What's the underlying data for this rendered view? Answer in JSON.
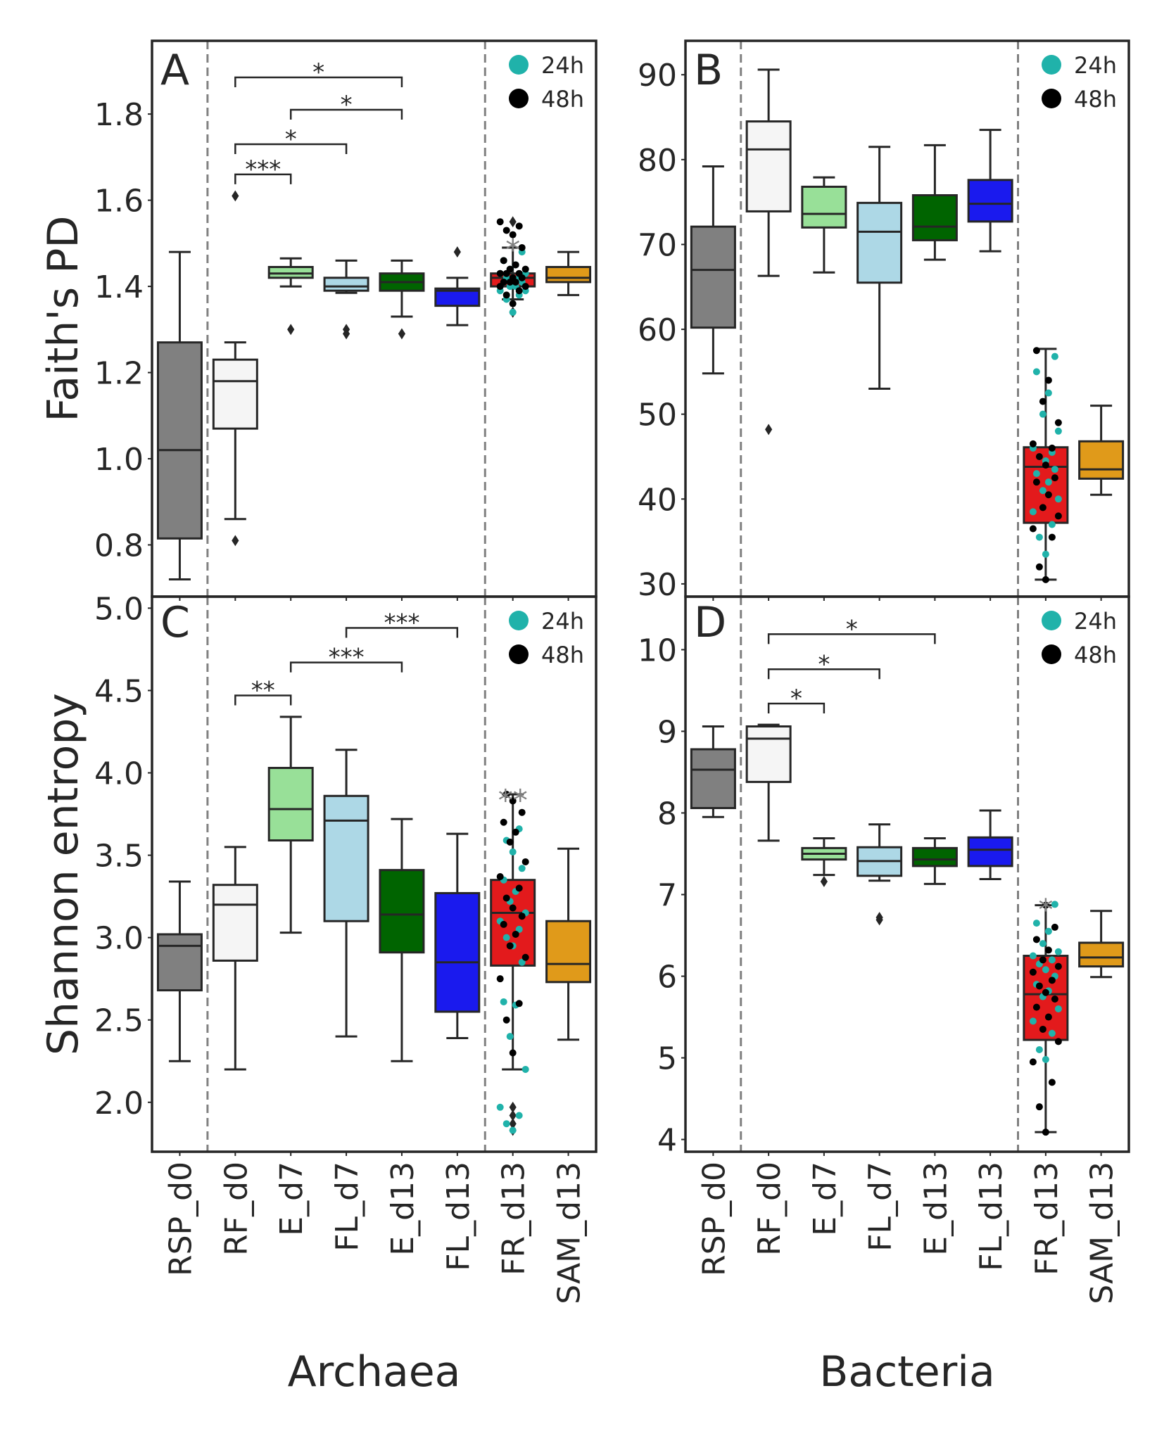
{
  "chart_data": [
    {
      "panel": "A",
      "type": "box",
      "ylabel": "Faith's PD",
      "xlabel": "",
      "ylim": [
        0.68,
        1.97
      ],
      "yticks": [
        "0.8",
        "1.0",
        "1.2",
        "1.4",
        "1.6",
        "1.8"
      ],
      "categories": [
        "RSP_d0",
        "RF_d0",
        "E_d7",
        "FL_d7",
        "E_d13",
        "FL_d13",
        "FR_d13",
        "SAM_d13"
      ],
      "colors": [
        "#808080",
        "#f5f5f5",
        "#98e098",
        "#add8e6",
        "#006400",
        "#1a1aee",
        "#e31a1c",
        "#e09a1a"
      ],
      "boxes": [
        {
          "category": "RSP_d0",
          "whislo": 0.72,
          "q1": 0.815,
          "med": 1.02,
          "q3": 1.27,
          "whishi": 1.48,
          "fliers": []
        },
        {
          "category": "RF_d0",
          "whislo": 0.86,
          "q1": 1.07,
          "med": 1.18,
          "q3": 1.23,
          "whishi": 1.27,
          "fliers": [
            0.81,
            1.61
          ]
        },
        {
          "category": "E_d7",
          "whislo": 1.4,
          "q1": 1.42,
          "med": 1.43,
          "q3": 1.445,
          "whishi": 1.465,
          "fliers": [
            1.3
          ]
        },
        {
          "category": "FL_d7",
          "whislo": 1.385,
          "q1": 1.39,
          "med": 1.4,
          "q3": 1.42,
          "whishi": 1.46,
          "fliers": [
            1.29,
            1.3
          ]
        },
        {
          "category": "E_d13",
          "whislo": 1.33,
          "q1": 1.39,
          "med": 1.41,
          "q3": 1.43,
          "whishi": 1.46,
          "fliers": [
            1.29
          ]
        },
        {
          "category": "FL_d13",
          "whislo": 1.31,
          "q1": 1.355,
          "med": 1.39,
          "q3": 1.395,
          "whishi": 1.42,
          "fliers": [
            1.48
          ]
        },
        {
          "category": "FR_d13",
          "whislo": 1.37,
          "q1": 1.4,
          "med": 1.42,
          "q3": 1.43,
          "whishi": 1.49,
          "fliers": [
            1.34,
            1.55
          ]
        },
        {
          "category": "SAM_d13",
          "whislo": 1.38,
          "q1": 1.41,
          "med": 1.42,
          "q3": 1.445,
          "whishi": 1.48,
          "fliers": []
        }
      ],
      "swarm_category": "FR_d13",
      "swarm_24h": [
        1.34,
        1.37,
        1.38,
        1.39,
        1.39,
        1.4,
        1.4,
        1.41,
        1.41,
        1.42,
        1.42,
        1.42,
        1.43,
        1.43,
        1.44,
        1.45,
        1.46,
        1.48
      ],
      "swarm_48h": [
        1.36,
        1.38,
        1.39,
        1.4,
        1.4,
        1.41,
        1.41,
        1.41,
        1.42,
        1.42,
        1.43,
        1.43,
        1.43,
        1.44,
        1.44,
        1.45,
        1.46,
        1.49,
        1.52,
        1.53,
        1.54,
        1.55
      ],
      "brackets": [
        {
          "from": "RF_d0",
          "to": "E_d7",
          "y": 1.66,
          "label": "***"
        },
        {
          "from": "RF_d0",
          "to": "FL_d7",
          "y": 1.73,
          "label": "*"
        },
        {
          "from": "E_d7",
          "to": "E_d13",
          "y": 1.81,
          "label": "*"
        },
        {
          "from": "RF_d0",
          "to": "E_d13",
          "y": 1.885,
          "label": "*"
        }
      ],
      "grey_annotation": {
        "category": "FR_d13",
        "y": 1.51,
        "label": "*"
      },
      "legend": [
        "24h",
        "48h"
      ]
    },
    {
      "panel": "B",
      "type": "box",
      "ylabel": "",
      "xlabel": "",
      "ylim": [
        28.5,
        94
      ],
      "yticks": [
        "30",
        "40",
        "50",
        "60",
        "70",
        "80",
        "90"
      ],
      "categories": [
        "RSP_d0",
        "RF_d0",
        "E_d7",
        "FL_d7",
        "E_d13",
        "FL_d13",
        "FR_d13",
        "SAM_d13"
      ],
      "colors": [
        "#808080",
        "#f5f5f5",
        "#98e098",
        "#add8e6",
        "#006400",
        "#1a1aee",
        "#e31a1c",
        "#e09a1a"
      ],
      "boxes": [
        {
          "category": "RSP_d0",
          "whislo": 54.8,
          "q1": 60.2,
          "med": 67.0,
          "q3": 72.1,
          "whishi": 79.2,
          "fliers": []
        },
        {
          "category": "RF_d0",
          "whislo": 66.3,
          "q1": 73.9,
          "med": 81.2,
          "q3": 84.5,
          "whishi": 90.6,
          "fliers": [
            48.2
          ]
        },
        {
          "category": "E_d7",
          "whislo": 66.7,
          "q1": 72.0,
          "med": 73.6,
          "q3": 76.8,
          "whishi": 77.9,
          "fliers": []
        },
        {
          "category": "FL_d7",
          "whislo": 53.0,
          "q1": 65.5,
          "med": 71.5,
          "q3": 74.9,
          "whishi": 81.5,
          "fliers": []
        },
        {
          "category": "E_d13",
          "whislo": 68.2,
          "q1": 70.5,
          "med": 72.1,
          "q3": 75.8,
          "whishi": 81.7,
          "fliers": []
        },
        {
          "category": "FL_d13",
          "whislo": 69.2,
          "q1": 72.7,
          "med": 74.8,
          "q3": 77.6,
          "whishi": 83.5,
          "fliers": []
        },
        {
          "category": "FR_d13",
          "whislo": 30.5,
          "q1": 37.2,
          "med": 43.8,
          "q3": 46.1,
          "whishi": 57.7,
          "fliers": []
        },
        {
          "category": "SAM_d13",
          "whislo": 40.5,
          "q1": 42.4,
          "med": 43.5,
          "q3": 46.8,
          "whishi": 51.0,
          "fliers": []
        }
      ],
      "swarm_category": "FR_d13",
      "swarm_24h": [
        33.5,
        35.5,
        37.0,
        38.5,
        40.0,
        41.0,
        42.0,
        43.0,
        43.5,
        44.5,
        45.0,
        45.5,
        46.0,
        48.0,
        50.0,
        52.5,
        55.0,
        56.8
      ],
      "swarm_48h": [
        30.5,
        32.0,
        35.5,
        36.5,
        38.0,
        39.0,
        40.5,
        42.0,
        42.5,
        44.0,
        45.0,
        46.0,
        46.5,
        49.0,
        51.5,
        54.0,
        57.5
      ],
      "brackets": [],
      "grey_annotation": null,
      "legend": [
        "24h",
        "48h"
      ]
    },
    {
      "panel": "C",
      "type": "box",
      "ylabel": "Shannon entropy",
      "xlabel": "Archaea",
      "ylim": [
        1.7,
        5.07
      ],
      "yticks": [
        "2.0",
        "2.5",
        "3.0",
        "3.5",
        "4.0",
        "4.5",
        "5.0"
      ],
      "categories": [
        "RSP_d0",
        "RF_d0",
        "E_d7",
        "FL_d7",
        "E_d13",
        "FL_d13",
        "FR_d13",
        "SAM_d13"
      ],
      "colors": [
        "#808080",
        "#f5f5f5",
        "#98e098",
        "#add8e6",
        "#006400",
        "#1a1aee",
        "#e31a1c",
        "#e09a1a"
      ],
      "boxes": [
        {
          "category": "RSP_d0",
          "whislo": 2.25,
          "q1": 2.68,
          "med": 2.95,
          "q3": 3.02,
          "whishi": 3.34,
          "fliers": []
        },
        {
          "category": "RF_d0",
          "whislo": 2.2,
          "q1": 2.86,
          "med": 3.2,
          "q3": 3.32,
          "whishi": 3.55,
          "fliers": []
        },
        {
          "category": "E_d7",
          "whislo": 3.03,
          "q1": 3.59,
          "med": 3.78,
          "q3": 4.03,
          "whishi": 4.34,
          "fliers": []
        },
        {
          "category": "FL_d7",
          "whislo": 2.4,
          "q1": 3.1,
          "med": 3.71,
          "q3": 3.86,
          "whishi": 4.14,
          "fliers": []
        },
        {
          "category": "E_d13",
          "whislo": 2.25,
          "q1": 2.91,
          "med": 3.14,
          "q3": 3.41,
          "whishi": 3.72,
          "fliers": []
        },
        {
          "category": "FL_d13",
          "whislo": 2.39,
          "q1": 2.55,
          "med": 2.85,
          "q3": 3.27,
          "whishi": 3.63,
          "fliers": []
        },
        {
          "category": "FR_d13",
          "whislo": 2.2,
          "q1": 2.83,
          "med": 3.15,
          "q3": 3.35,
          "whishi": 3.87,
          "fliers": [
            1.83,
            1.87,
            1.92,
            1.97
          ]
        },
        {
          "category": "SAM_d13",
          "whislo": 2.38,
          "q1": 2.73,
          "med": 2.84,
          "q3": 3.1,
          "whishi": 3.54,
          "fliers": []
        }
      ],
      "swarm_category": "FR_d13",
      "swarm_24h": [
        1.83,
        1.87,
        1.92,
        1.97,
        2.2,
        2.4,
        2.59,
        2.61,
        2.85,
        2.95,
        3.0,
        3.05,
        3.1,
        3.15,
        3.22,
        3.28,
        3.35,
        3.42,
        3.52,
        3.59,
        3.66
      ],
      "swarm_48h": [
        2.3,
        2.5,
        2.6,
        2.75,
        2.88,
        2.95,
        3.02,
        3.08,
        3.13,
        3.18,
        3.24,
        3.3,
        3.37,
        3.46,
        3.58,
        3.64,
        3.7,
        3.76,
        3.83,
        3.87
      ],
      "brackets": [
        {
          "from": "RF_d0",
          "to": "E_d7",
          "y": 4.47,
          "label": "**"
        },
        {
          "from": "E_d7",
          "to": "E_d13",
          "y": 4.67,
          "label": "***"
        },
        {
          "from": "FL_d7",
          "to": "FL_d13",
          "y": 4.88,
          "label": "***"
        }
      ],
      "grey_annotation": {
        "category": "FR_d13",
        "y": 3.9,
        "label": "**"
      },
      "legend": [
        "24h",
        "48h"
      ]
    },
    {
      "panel": "D",
      "type": "box",
      "ylabel": "",
      "xlabel": "Bacteria",
      "ylim": [
        3.85,
        10.65
      ],
      "yticks": [
        "4",
        "5",
        "6",
        "7",
        "8",
        "9",
        "10"
      ],
      "categories": [
        "RSP_d0",
        "RF_d0",
        "E_d7",
        "FL_d7",
        "E_d13",
        "FL_d13",
        "FR_d13",
        "SAM_d13"
      ],
      "colors": [
        "#808080",
        "#f5f5f5",
        "#98e098",
        "#add8e6",
        "#006400",
        "#1a1aee",
        "#e31a1c",
        "#e09a1a"
      ],
      "boxes": [
        {
          "category": "RSP_d0",
          "whislo": 7.95,
          "q1": 8.06,
          "med": 8.53,
          "q3": 8.78,
          "whishi": 9.06,
          "fliers": []
        },
        {
          "category": "RF_d0",
          "whislo": 7.66,
          "q1": 8.38,
          "med": 8.91,
          "q3": 9.06,
          "whishi": 9.08,
          "fliers": []
        },
        {
          "category": "E_d7",
          "whislo": 7.24,
          "q1": 7.43,
          "med": 7.5,
          "q3": 7.57,
          "whishi": 7.69,
          "fliers": [
            7.16
          ]
        },
        {
          "category": "FL_d7",
          "whislo": 7.17,
          "q1": 7.23,
          "med": 7.41,
          "q3": 7.58,
          "whishi": 7.86,
          "fliers": [
            6.69,
            6.72
          ]
        },
        {
          "category": "E_d13",
          "whislo": 7.13,
          "q1": 7.35,
          "med": 7.43,
          "q3": 7.57,
          "whishi": 7.69,
          "fliers": []
        },
        {
          "category": "FL_d13",
          "whislo": 7.19,
          "q1": 7.35,
          "med": 7.55,
          "q3": 7.7,
          "whishi": 8.03,
          "fliers": []
        },
        {
          "category": "FR_d13",
          "whislo": 4.09,
          "q1": 5.22,
          "med": 5.78,
          "q3": 6.25,
          "whishi": 6.87,
          "fliers": []
        },
        {
          "category": "SAM_d13",
          "whislo": 5.99,
          "q1": 6.12,
          "med": 6.23,
          "q3": 6.41,
          "whishi": 6.8,
          "fliers": []
        }
      ],
      "swarm_category": "FR_d13",
      "swarm_24h": [
        4.98,
        5.1,
        5.3,
        5.45,
        5.6,
        5.75,
        5.82,
        5.9,
        6.0,
        6.08,
        6.15,
        6.2,
        6.25,
        6.3,
        6.4,
        6.55,
        6.65,
        6.88
      ],
      "swarm_48h": [
        4.09,
        4.4,
        4.7,
        4.95,
        5.2,
        5.35,
        5.5,
        5.62,
        5.72,
        5.8,
        5.88,
        5.95,
        6.05,
        6.12,
        6.2,
        6.32,
        6.45,
        6.6,
        6.87
      ],
      "brackets": [
        {
          "from": "RF_d0",
          "to": "E_d7",
          "y": 9.34,
          "label": "*"
        },
        {
          "from": "RF_d0",
          "to": "FL_d7",
          "y": 9.76,
          "label": "*"
        },
        {
          "from": "RF_d0",
          "to": "E_d13",
          "y": 10.19,
          "label": "*"
        }
      ],
      "grey_annotation": {
        "category": "FR_d13",
        "y": 6.95,
        "label": "*"
      },
      "legend": [
        "24h",
        "48h"
      ]
    }
  ],
  "legend_colors": {
    "24h": "#20b2aa",
    "48h": "#000000"
  }
}
